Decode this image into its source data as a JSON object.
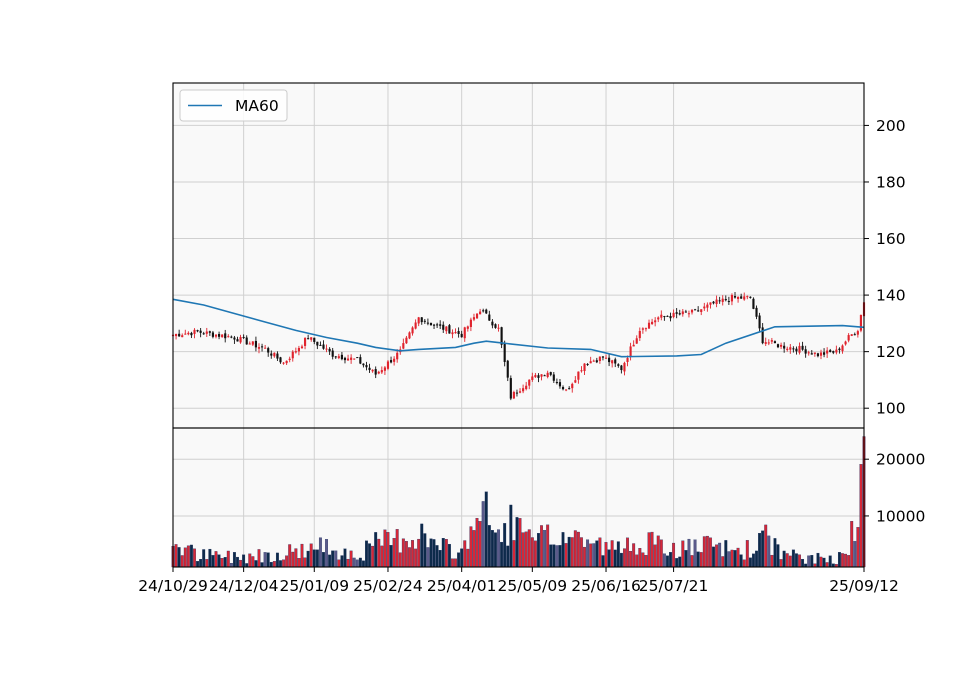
{
  "chart_data": {
    "type": "candlestick",
    "title": "",
    "grid": true,
    "legend": {
      "placement": "top-left",
      "entries": [
        "MA60"
      ]
    },
    "colors": {
      "up": "#e0232d",
      "down": "#111111",
      "ma60": "#1f77b4",
      "volume_up": "#d62738",
      "volume_down": "#0d2a4a",
      "volume_flat": "#5a5a8a",
      "panel_bg": "#f9f9f9",
      "grid": "#d0d0d0"
    },
    "x_tick_labels": [
      "24/10/29",
      "24/12/04",
      "25/01/09",
      "25/02/24",
      "25/04/01",
      "25/05/09",
      "25/06/16",
      "25/07/21",
      "25/09/12"
    ],
    "price_axis": {
      "ylim": [
        93,
        215
      ],
      "ticks": [
        100,
        120,
        140,
        160,
        180,
        200
      ]
    },
    "volume_axis": {
      "ylim": [
        1000,
        25500
      ],
      "ticks": [
        "10000",
        "20000"
      ]
    },
    "anchors": [
      {
        "i": 0,
        "p": 126,
        "v": 5500
      },
      {
        "i": 8,
        "p": 127,
        "v": 3000
      },
      {
        "i": 20,
        "p": 125,
        "v": 2800
      },
      {
        "i": 30,
        "p": 121,
        "v": 3200
      },
      {
        "i": 36,
        "p": 116,
        "v": 3500
      },
      {
        "i": 44,
        "p": 125,
        "v": 4200
      },
      {
        "i": 52,
        "p": 119,
        "v": 4500
      },
      {
        "i": 60,
        "p": 117,
        "v": 3000
      },
      {
        "i": 66,
        "p": 112,
        "v": 5000
      },
      {
        "i": 74,
        "p": 120,
        "v": 6000
      },
      {
        "i": 80,
        "p": 132,
        "v": 7000
      },
      {
        "i": 86,
        "p": 129,
        "v": 4500
      },
      {
        "i": 94,
        "p": 126,
        "v": 3500
      },
      {
        "i": 100,
        "p": 135,
        "v": 12000
      },
      {
        "i": 106,
        "p": 128,
        "v": 6000
      },
      {
        "i": 110,
        "p": 104,
        "v": 9000
      },
      {
        "i": 116,
        "p": 110,
        "v": 5500
      },
      {
        "i": 122,
        "p": 113,
        "v": 6000
      },
      {
        "i": 128,
        "p": 106,
        "v": 6500
      },
      {
        "i": 134,
        "p": 116,
        "v": 6000
      },
      {
        "i": 140,
        "p": 118,
        "v": 4500
      },
      {
        "i": 146,
        "p": 114,
        "v": 4000
      },
      {
        "i": 152,
        "p": 128,
        "v": 6000
      },
      {
        "i": 158,
        "p": 132,
        "v": 4500
      },
      {
        "i": 164,
        "p": 133,
        "v": 4000
      },
      {
        "i": 170,
        "p": 134,
        "v": 4500
      },
      {
        "i": 176,
        "p": 137,
        "v": 4500
      },
      {
        "i": 182,
        "p": 139,
        "v": 4000
      },
      {
        "i": 188,
        "p": 139,
        "v": 4000
      },
      {
        "i": 192,
        "p": 124,
        "v": 6500
      },
      {
        "i": 198,
        "p": 122,
        "v": 3500
      },
      {
        "i": 204,
        "p": 121,
        "v": 2500
      },
      {
        "i": 210,
        "p": 119,
        "v": 2400
      },
      {
        "i": 216,
        "p": 120,
        "v": 2600
      },
      {
        "i": 220,
        "p": 125,
        "v": 5500
      },
      {
        "i": 223,
        "p": 128,
        "v": 8000
      },
      {
        "i": 225,
        "p": 138,
        "v": 24000
      }
    ],
    "ma60": {
      "name": "MA60",
      "points": [
        {
          "i": 0,
          "p": 138.5
        },
        {
          "i": 10,
          "p": 136.5
        },
        {
          "i": 20,
          "p": 133.5
        },
        {
          "i": 30,
          "p": 130.5
        },
        {
          "i": 40,
          "p": 127.5
        },
        {
          "i": 50,
          "p": 125
        },
        {
          "i": 60,
          "p": 123
        },
        {
          "i": 66,
          "p": 121.5
        },
        {
          "i": 74,
          "p": 120.3
        },
        {
          "i": 80,
          "p": 120.8
        },
        {
          "i": 92,
          "p": 121.5
        },
        {
          "i": 98,
          "p": 123
        },
        {
          "i": 102,
          "p": 123.7
        },
        {
          "i": 106,
          "p": 123.2
        },
        {
          "i": 122,
          "p": 121.3
        },
        {
          "i": 136,
          "p": 120.8
        },
        {
          "i": 146,
          "p": 118.2
        },
        {
          "i": 164,
          "p": 118.5
        },
        {
          "i": 172,
          "p": 119
        },
        {
          "i": 180,
          "p": 123
        },
        {
          "i": 196,
          "p": 128.8
        },
        {
          "i": 218,
          "p": 129.2
        },
        {
          "i": 225,
          "p": 128.6
        }
      ]
    }
  }
}
